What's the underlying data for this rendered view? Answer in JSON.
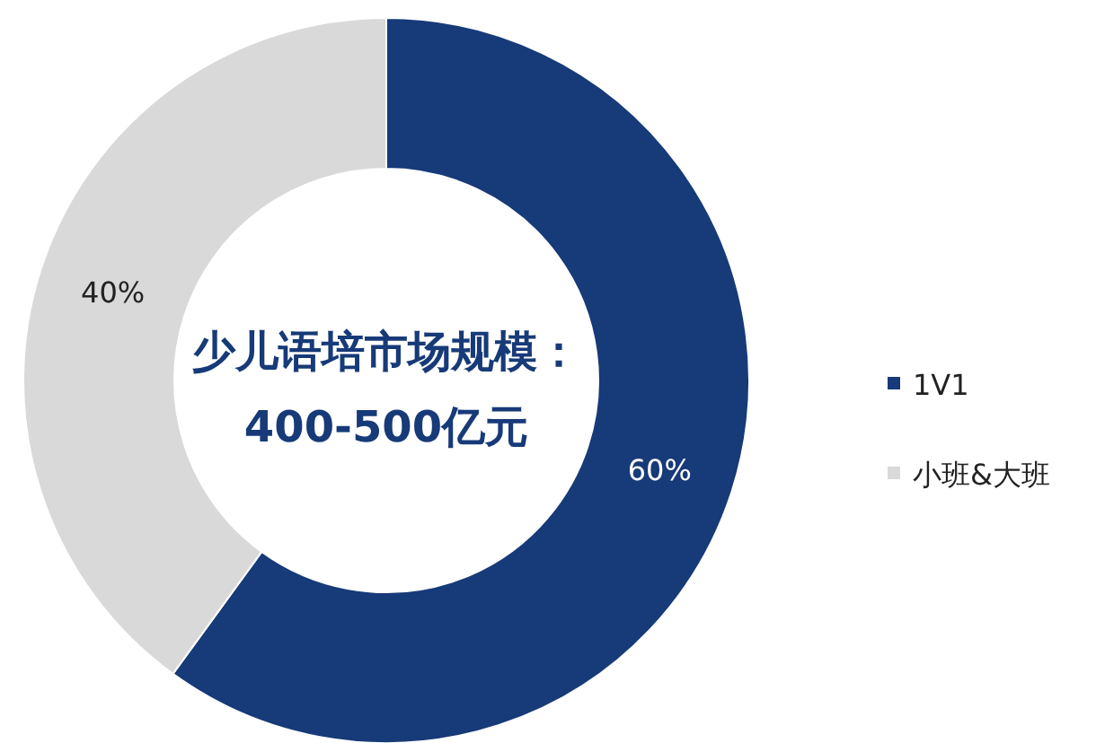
{
  "chart_data": {
    "type": "donut",
    "title": "少儿语培市场规模：",
    "subtitle": "400-500亿元",
    "categories": [
      "1V1",
      "小班&大班"
    ],
    "values": [
      60,
      40
    ],
    "value_labels": [
      "60%",
      "40%"
    ],
    "colors": [
      "#173a78",
      "#d9d9d9"
    ],
    "legend": "right"
  }
}
